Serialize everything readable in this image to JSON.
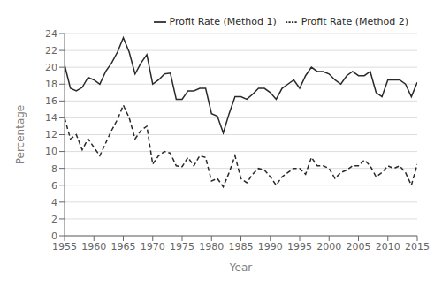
{
  "chart_data": {
    "type": "line",
    "x": [
      1955,
      1956,
      1957,
      1958,
      1959,
      1960,
      1961,
      1962,
      1963,
      1964,
      1965,
      1966,
      1967,
      1968,
      1969,
      1970,
      1971,
      1972,
      1973,
      1974,
      1975,
      1976,
      1977,
      1978,
      1979,
      1980,
      1981,
      1982,
      1983,
      1984,
      1985,
      1986,
      1987,
      1988,
      1989,
      1990,
      1991,
      1992,
      1993,
      1994,
      1995,
      1996,
      1997,
      1998,
      1999,
      2000,
      2001,
      2002,
      2003,
      2004,
      2005,
      2006,
      2007,
      2008,
      2009,
      2010,
      2011,
      2012,
      2013,
      2014,
      2015
    ],
    "series": [
      {
        "name": "Profit Rate (Method 1)",
        "color": "#2a2a2a",
        "line_style": "solid",
        "values": [
          20.3,
          17.5,
          17.2,
          17.6,
          18.8,
          18.5,
          18.0,
          19.5,
          20.5,
          21.8,
          23.5,
          21.8,
          19.2,
          20.5,
          21.5,
          18.0,
          18.5,
          19.2,
          19.3,
          16.2,
          16.2,
          17.2,
          17.2,
          17.5,
          17.5,
          14.5,
          14.2,
          12.2,
          14.5,
          16.5,
          16.5,
          16.2,
          16.8,
          17.5,
          17.5,
          17.0,
          16.2,
          17.5,
          18.0,
          18.5,
          17.5,
          19.0,
          20.0,
          19.5,
          19.5,
          19.2,
          18.5,
          18.0,
          19.0,
          19.5,
          19.0,
          19.0,
          19.5,
          17.0,
          16.5,
          18.5,
          18.5,
          18.5,
          18.0,
          16.5,
          18.2
        ]
      },
      {
        "name": "Profit Rate (Method 2)",
        "color": "#2a2a2a",
        "line_style": "dashed",
        "values": [
          14.0,
          11.5,
          12.0,
          10.2,
          11.5,
          10.5,
          9.5,
          11.0,
          12.5,
          13.8,
          15.5,
          14.0,
          11.5,
          12.5,
          13.0,
          8.5,
          9.5,
          10.0,
          9.8,
          8.3,
          8.2,
          9.3,
          8.3,
          9.5,
          9.3,
          6.5,
          6.8,
          5.8,
          7.5,
          9.5,
          6.8,
          6.3,
          7.3,
          8.0,
          7.8,
          7.0,
          6.0,
          7.0,
          7.5,
          8.0,
          8.0,
          7.3,
          9.3,
          8.3,
          8.3,
          8.0,
          6.8,
          7.5,
          7.8,
          8.3,
          8.3,
          9.0,
          8.3,
          7.0,
          7.5,
          8.3,
          8.0,
          8.3,
          7.5,
          6.0,
          8.5
        ]
      }
    ],
    "xlabel": "Year",
    "ylabel": "Percentage",
    "xlim": [
      1955,
      2015
    ],
    "ylim": [
      0,
      24
    ],
    "xticks": [
      1955,
      1960,
      1965,
      1970,
      1975,
      1980,
      1985,
      1990,
      1995,
      2000,
      2005,
      2010,
      2015
    ],
    "yticks": [
      0,
      2,
      4,
      6,
      8,
      10,
      12,
      14,
      16,
      18,
      20,
      22,
      24
    ],
    "grid": true,
    "legend": "upper right"
  }
}
